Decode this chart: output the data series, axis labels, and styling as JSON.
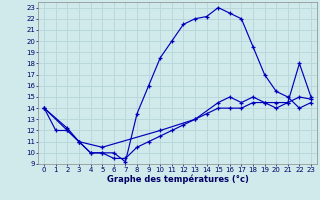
{
  "xlabel": "Graphe des températures (°c)",
  "xlim": [
    -0.5,
    23.5
  ],
  "ylim": [
    9,
    23.5
  ],
  "xticks": [
    0,
    1,
    2,
    3,
    4,
    5,
    6,
    7,
    8,
    9,
    10,
    11,
    12,
    13,
    14,
    15,
    16,
    17,
    18,
    19,
    20,
    21,
    22,
    23
  ],
  "yticks": [
    9,
    10,
    11,
    12,
    13,
    14,
    15,
    16,
    17,
    18,
    19,
    20,
    21,
    22,
    23
  ],
  "bg_color": "#d0eaec",
  "line_color": "#0000bb",
  "grid_color": "#b8d8dc",
  "line1_x": [
    0,
    1,
    2,
    3,
    4,
    5,
    6,
    7,
    8,
    9,
    10,
    11,
    12,
    13,
    14,
    15,
    16,
    17,
    18,
    19,
    20,
    21,
    22,
    23
  ],
  "line1_y": [
    14,
    12,
    12,
    11,
    10,
    10,
    10,
    9.2,
    13.5,
    16,
    18.5,
    20,
    21.5,
    22,
    22.2,
    23,
    22.5,
    22,
    19.5,
    17,
    15.5,
    15,
    14,
    14.5
  ],
  "line2_x": [
    0,
    2,
    3,
    5,
    10,
    13,
    15,
    16,
    17,
    18,
    19,
    20,
    21,
    22,
    23
  ],
  "line2_y": [
    14,
    12.2,
    11,
    10.5,
    12,
    13,
    14.5,
    15,
    14.5,
    15,
    14.5,
    14,
    14.5,
    18,
    15
  ],
  "line3_x": [
    0,
    2,
    3,
    4,
    5,
    6,
    7,
    8,
    9,
    10,
    11,
    12,
    13,
    14,
    15,
    16,
    17,
    18,
    19,
    20,
    21,
    22,
    23
  ],
  "line3_y": [
    14,
    12,
    11,
    10,
    10,
    9.5,
    9.5,
    10.5,
    11,
    11.5,
    12,
    12.5,
    13,
    13.5,
    14,
    14,
    14,
    14.5,
    14.5,
    14.5,
    14.5,
    15,
    14.8
  ]
}
